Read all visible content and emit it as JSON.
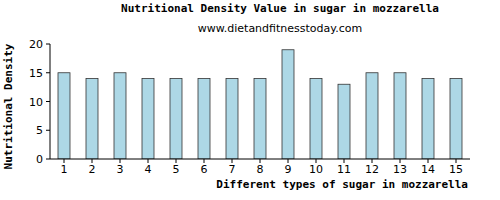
{
  "chart_data": {
    "type": "bar",
    "title": "Nutritional Density Value in sugar in mozzarella",
    "subtitle": "www.dietandfitnesstoday.com",
    "x_label": "Different types of sugar in mozzarella",
    "y_label": "Nutritional Density",
    "categories": [
      "1",
      "2",
      "3",
      "4",
      "5",
      "6",
      "7",
      "8",
      "9",
      "10",
      "11",
      "12",
      "13",
      "14",
      "15"
    ],
    "values": [
      15,
      14,
      15,
      14,
      14,
      14,
      14,
      14,
      19,
      14,
      13,
      15,
      15,
      14,
      14
    ],
    "color": "#add8e6",
    "ylim": [
      0,
      20
    ],
    "yticks": [
      0,
      5,
      10,
      15,
      20
    ],
    "grid": false
  }
}
